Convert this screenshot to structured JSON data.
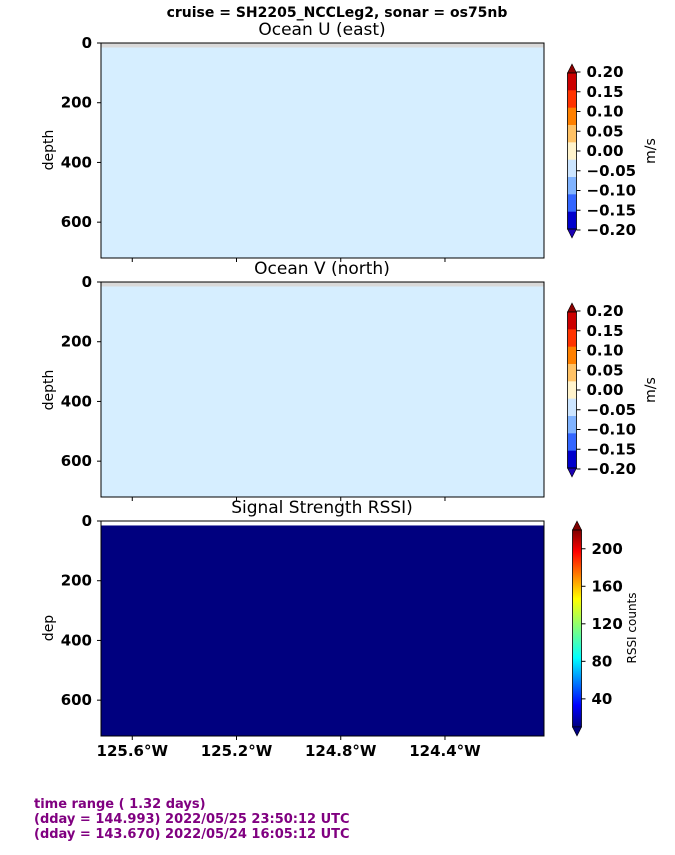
{
  "suptitle": "cruise = SH2205_NCCLeg2,  sonar = os75nb",
  "chart_data": [
    {
      "type": "heatmap",
      "title": "Ocean U (east)",
      "ylabel": "depth",
      "ylim": [
        720,
        0
      ],
      "yticks": [
        0,
        200,
        400,
        600
      ],
      "fill_color": "#d6eeff",
      "nodata_band": [
        0,
        15
      ],
      "nodata_color": "#d9d9d9",
      "colorbar": {
        "label": "m/s",
        "ticks": [
          "0.20",
          "0.15",
          "0.10",
          "0.05",
          "0.00",
          "−0.05",
          "−0.10",
          "−0.15",
          "−0.20"
        ],
        "colors": [
          "#cc0000",
          "#ff3300",
          "#ff8000",
          "#ffc266",
          "#fff3cc",
          "#cce5ff",
          "#80b3ff",
          "#3366ff",
          "#0000cc"
        ],
        "extend_top": "#8b0000",
        "extend_bottom": "#1a00b3"
      }
    },
    {
      "type": "heatmap",
      "title": "Ocean V (north)",
      "ylabel": "depth",
      "ylim": [
        720,
        0
      ],
      "yticks": [
        0,
        200,
        400,
        600
      ],
      "fill_color": "#d6eeff",
      "nodata_band": [
        0,
        15
      ],
      "nodata_color": "#d9d9d9",
      "colorbar": {
        "label": "m/s",
        "ticks": [
          "0.20",
          "0.15",
          "0.10",
          "0.05",
          "0.00",
          "−0.05",
          "−0.10",
          "−0.15",
          "−0.20"
        ],
        "colors": [
          "#cc0000",
          "#ff3300",
          "#ff8000",
          "#ffc266",
          "#fff3cc",
          "#cce5ff",
          "#80b3ff",
          "#3366ff",
          "#0000cc"
        ],
        "extend_top": "#8b0000",
        "extend_bottom": "#1a00b3"
      }
    },
    {
      "type": "heatmap",
      "title": "Signal Strength RSSI)",
      "ylabel": "dep",
      "ylim": [
        720,
        0
      ],
      "yticks": [
        0,
        200,
        400,
        600
      ],
      "fill_color": "#00007f",
      "nodata_band": [
        0,
        15
      ],
      "nodata_color": "#ffffff",
      "xlim": [
        -125.72,
        -124.02
      ],
      "xticks": [
        -125.6,
        -125.2,
        -124.8,
        -124.4
      ],
      "xtick_labels": [
        "125.6°W",
        "125.2°W",
        "124.8°W",
        "124.4°W"
      ],
      "colorbar": {
        "label": "RSSI counts",
        "range": [
          10,
          220
        ],
        "ticks": [
          40,
          80,
          120,
          160,
          200
        ],
        "tick_labels": [
          "40",
          "80",
          "120",
          "160",
          "200"
        ],
        "cmap": "jet"
      }
    }
  ],
  "footer": {
    "line1": "time range ( 1.32 days)",
    "line2": "(dday = 144.993) 2022/05/25 23:50:12 UTC",
    "line3": "(dday = 143.670) 2022/05/24 16:05:12 UTC"
  }
}
